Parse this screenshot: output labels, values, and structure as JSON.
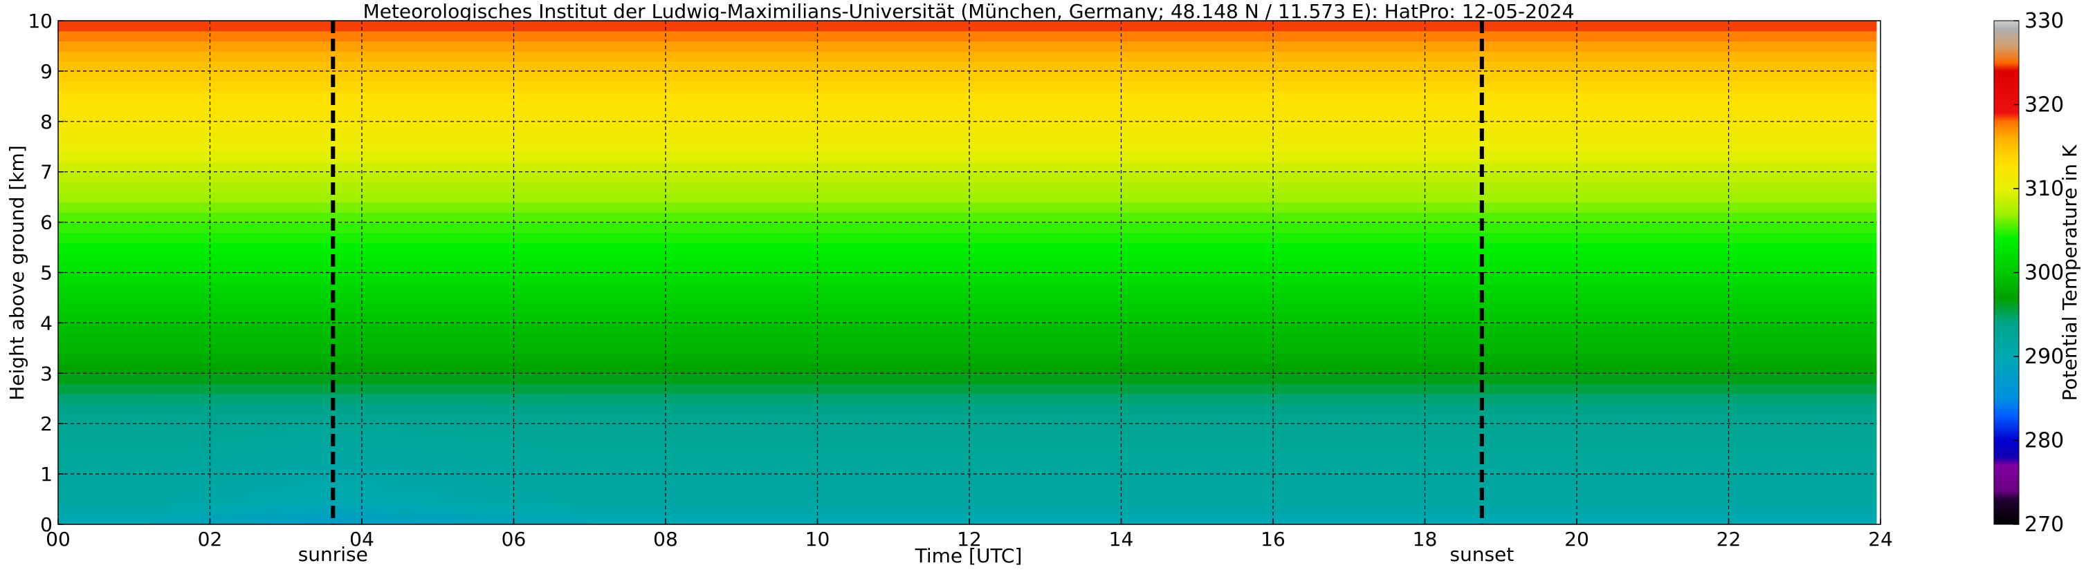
{
  "chart_data": {
    "type": "heatmap",
    "title": "Meteorologisches Institut der Ludwig-Maximilians-Universität (München, Germany; 48.148 N / 11.573 E):    HatPro: 12-05-2024",
    "xlabel": "Time [UTC]",
    "ylabel": "Height above ground [km]",
    "xlim": [
      0,
      24
    ],
    "ylim": [
      0,
      10
    ],
    "x_ticks": [
      "00",
      "02",
      "04",
      "06",
      "08",
      "10",
      "12",
      "14",
      "16",
      "18",
      "20",
      "22",
      "24"
    ],
    "y_ticks": [
      "0",
      "1",
      "2",
      "3",
      "4",
      "5",
      "6",
      "7",
      "8",
      "9",
      "10"
    ],
    "grid": true,
    "colorbar": {
      "label": "Potential Temperature in K",
      "range": [
        270,
        330
      ],
      "ticks": [
        "270",
        "280",
        "290",
        "300",
        "310",
        "320",
        "330"
      ],
      "stops": [
        {
          "value": 270,
          "color": "#000000"
        },
        {
          "value": 273,
          "color": "#220033"
        },
        {
          "value": 274,
          "color": "#6a0080"
        },
        {
          "value": 277,
          "color": "#8000a0"
        },
        {
          "value": 278,
          "color": "#1200b0"
        },
        {
          "value": 280,
          "color": "#0000d0"
        },
        {
          "value": 283,
          "color": "#0060ff"
        },
        {
          "value": 285,
          "color": "#0090e0"
        },
        {
          "value": 290,
          "color": "#00a8b0"
        },
        {
          "value": 294,
          "color": "#00a488"
        },
        {
          "value": 297,
          "color": "#00a000"
        },
        {
          "value": 300,
          "color": "#00c800"
        },
        {
          "value": 304,
          "color": "#00f000"
        },
        {
          "value": 307,
          "color": "#a0f000"
        },
        {
          "value": 310,
          "color": "#e8f000"
        },
        {
          "value": 313,
          "color": "#ffe000"
        },
        {
          "value": 316,
          "color": "#ffb000"
        },
        {
          "value": 318,
          "color": "#ff7000"
        },
        {
          "value": 319,
          "color": "#ee1010"
        },
        {
          "value": 324,
          "color": "#dd0000"
        },
        {
          "value": 325,
          "color": "#ff6a00"
        },
        {
          "value": 327,
          "color": "#d0a070"
        },
        {
          "value": 329,
          "color": "#b0b0b0"
        },
        {
          "value": 330,
          "color": "#d0d0d0"
        }
      ]
    },
    "profile": {
      "height_km": [
        0,
        0.5,
        1,
        1.5,
        2,
        2.5,
        3,
        3.5,
        4,
        4.5,
        5,
        5.5,
        6,
        6.5,
        7,
        7.5,
        8,
        8.5,
        9,
        9.5,
        10
      ],
      "theta_K": [
        289.5,
        291.5,
        292,
        292.5,
        293,
        294.5,
        297,
        298.5,
        299.5,
        300.8,
        302.5,
        304,
        305.2,
        307,
        308.5,
        310.5,
        312,
        313,
        314.5,
        316.5,
        319
      ]
    },
    "morning_cold_anomaly": {
      "start_utc": 1.2,
      "end_utc": 7,
      "peak_utc": 3.6,
      "amplitude_K": -2
    },
    "data_end_utc": 23.95,
    "events": [
      {
        "label": "sunrise",
        "time_utc": 3.62
      },
      {
        "label": "sunset",
        "time_utc": 18.75
      }
    ]
  }
}
